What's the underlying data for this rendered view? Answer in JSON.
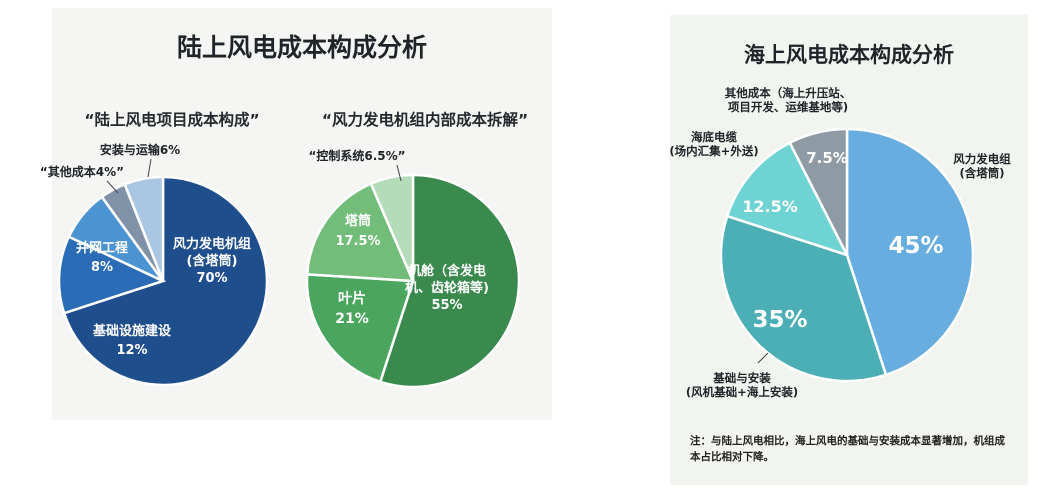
{
  "left": {
    "title": "陆上风电成本构成分析"
  },
  "right": {
    "title": "海上风电成本构成分析",
    "note": "注：与陆上风电相比，海上风电的基础与安装成本显著增加，机组成本占比相对下降。"
  },
  "chart_data": [
    {
      "type": "pie",
      "title": "“陆上风电项目成本构成”",
      "slices": [
        {
          "name_lines": [
            "风力发电机组",
            "(含塔筒)"
          ],
          "value": 70,
          "value_label": "70%",
          "color": "#1f4e8c"
        },
        {
          "name_lines": [
            "基础设施建设"
          ],
          "value": 12,
          "value_label": "12%",
          "color": "#2a6cb5"
        },
        {
          "name_lines": [
            "并网工程"
          ],
          "value": 8,
          "value_label": "8%",
          "color": "#4c93d2"
        },
        {
          "name_lines": [
            "“其他成本4%”"
          ],
          "value": 4,
          "value_label": "",
          "color": "#8092a8"
        },
        {
          "name_lines": [
            "安装与运输6%"
          ],
          "value": 6,
          "value_label": "",
          "color": "#a9c6e3"
        }
      ]
    },
    {
      "type": "pie",
      "title": "“风力发电机组内部成本拆解”",
      "slices": [
        {
          "name_lines": [
            "机舱（含发电",
            "机、齿轮箱等)"
          ],
          "value": 55,
          "value_label": "55%",
          "color": "#3a8a4e"
        },
        {
          "name_lines": [
            "叶片"
          ],
          "value": 21,
          "value_label": "21%",
          "color": "#4aa55f"
        },
        {
          "name_lines": [
            "塔筒"
          ],
          "value": 17.5,
          "value_label": "17.5%",
          "color": "#72bd79"
        },
        {
          "name_lines": [
            "“控制系统6.5%”"
          ],
          "value": 6.5,
          "value_label": "",
          "color": "#b5dcb8"
        }
      ]
    },
    {
      "type": "pie",
      "title": "",
      "slices": [
        {
          "name_lines": [
            "风力发电组",
            "(含塔筒)"
          ],
          "value": 45,
          "value_label": "45%",
          "color": "#68addf"
        },
        {
          "name_lines": [
            "基础与安装",
            "(风机基础+海上安装)"
          ],
          "value": 35,
          "value_label": "35%",
          "color": "#4dafb6"
        },
        {
          "name_lines": [
            "海底电缆",
            "(场内汇集+外送)"
          ],
          "value": 12.5,
          "value_label": "12.5%",
          "color": "#6fd3d4"
        },
        {
          "name_lines": [
            "其他成本（海上升压站、",
            "项目开发、运维基地等)"
          ],
          "value": 7.5,
          "value_label": "7.5%",
          "color": "#8e9aa4"
        }
      ]
    }
  ]
}
